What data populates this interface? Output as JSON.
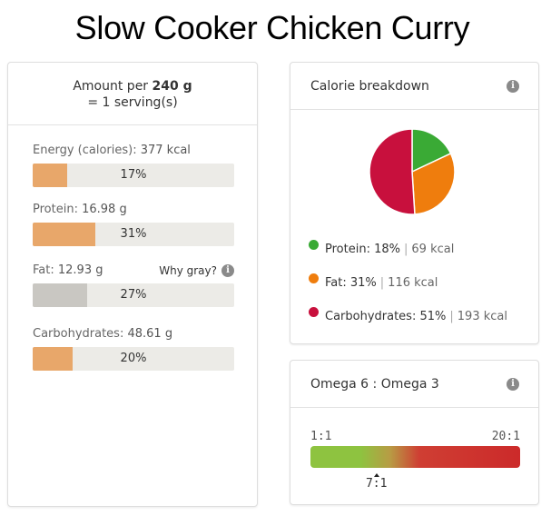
{
  "title": "Slow Cooker Chicken Curry",
  "nutrition": {
    "amount_prefix": "Amount per",
    "amount_value": "240 g",
    "serving_line": "= 1 serving(s)",
    "why_gray": "Why gray?",
    "items": [
      {
        "label": "Energy (calories):",
        "value": "377 kcal",
        "percent_text": "17%",
        "percent": 17,
        "gray": false
      },
      {
        "label": "Protein:",
        "value": "16.98 g",
        "percent_text": "31%",
        "percent": 31,
        "gray": false
      },
      {
        "label": "Fat:",
        "value": "12.93 g",
        "percent_text": "27%",
        "percent": 27,
        "gray": true
      },
      {
        "label": "Carbohydrates:",
        "value": "48.61 g",
        "percent_text": "20%",
        "percent": 20,
        "gray": false
      }
    ]
  },
  "calorie_breakdown": {
    "title": "Calorie breakdown",
    "info_icon": "info-icon",
    "legend": [
      {
        "name": "Protein:",
        "pct": "18%",
        "kcal": "69 kcal",
        "color": "#3aaa35"
      },
      {
        "name": "Fat:",
        "pct": "31%",
        "kcal": "116 kcal",
        "color": "#ef7d0d"
      },
      {
        "name": "Carbohydrates:",
        "pct": "51%",
        "kcal": "193 kcal",
        "color": "#c8103d"
      }
    ]
  },
  "omega": {
    "title": "Omega 6 : Omega 3",
    "min_label": "1:1",
    "max_label": "20:1",
    "marker_label": "7:1",
    "marker_value": 7,
    "scale_min": 1,
    "scale_max": 20
  },
  "chart_data": {
    "type": "pie",
    "categories": [
      "Protein",
      "Fat",
      "Carbohydrates"
    ],
    "values": [
      18,
      31,
      51
    ],
    "colors": [
      "#3aaa35",
      "#ef7d0d",
      "#c8103d"
    ],
    "title": "Calorie breakdown"
  }
}
